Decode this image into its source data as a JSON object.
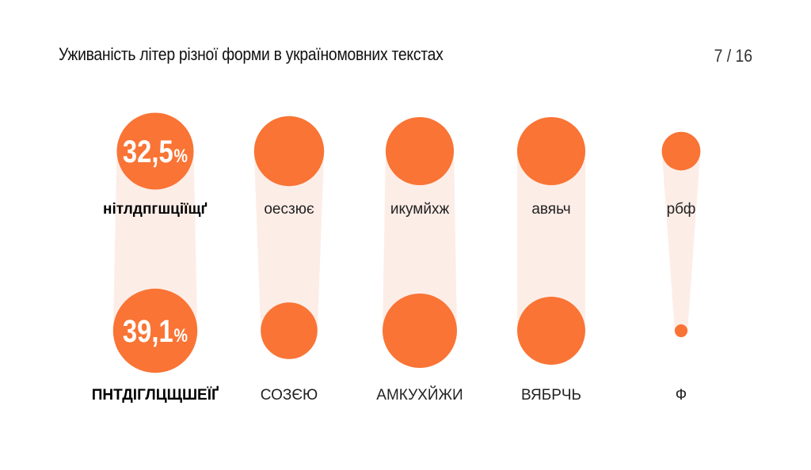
{
  "header": {
    "title": "Уживаність літер різної форми в україномовних текстах",
    "page_counter": "7 / 16"
  },
  "colors": {
    "accent": "#F97435",
    "connector": "#FDEDE7",
    "text": "#222222"
  },
  "chart_data": {
    "type": "bubble-comparison",
    "title": "Уживаність літер різної форми в україномовних текстах",
    "encoding": "circle area proportional to share of letter usage",
    "rows": [
      "lowercase",
      "uppercase"
    ],
    "groups": [
      {
        "lowercase_label": "нітлдпгшціїщґ",
        "uppercase_label": "ПНТДІГЛЦЩШЕЇҐ",
        "lowercase_value": 32.5,
        "uppercase_value": 39.1,
        "lowercase_text": "32,5%",
        "uppercase_text": "39,1%",
        "highlight": true
      },
      {
        "lowercase_label": "оесзює",
        "uppercase_label": "СОЗЄЮ",
        "lowercase_value": 27.0,
        "uppercase_value": 17.7,
        "highlight": false
      },
      {
        "lowercase_label": "икумйхж",
        "uppercase_label": "АМКУХЙЖИ",
        "lowercase_value": 25.6,
        "uppercase_value": 30.5,
        "highlight": false
      },
      {
        "lowercase_label": "авяьч",
        "uppercase_label": "ВЯБРЧЬ",
        "lowercase_value": 25.6,
        "uppercase_value": 25.5,
        "highlight": false
      },
      {
        "lowercase_label": "рбф",
        "uppercase_label": "Ф",
        "lowercase_value": 8.2,
        "uppercase_value": 0.9,
        "highlight": false
      }
    ]
  }
}
